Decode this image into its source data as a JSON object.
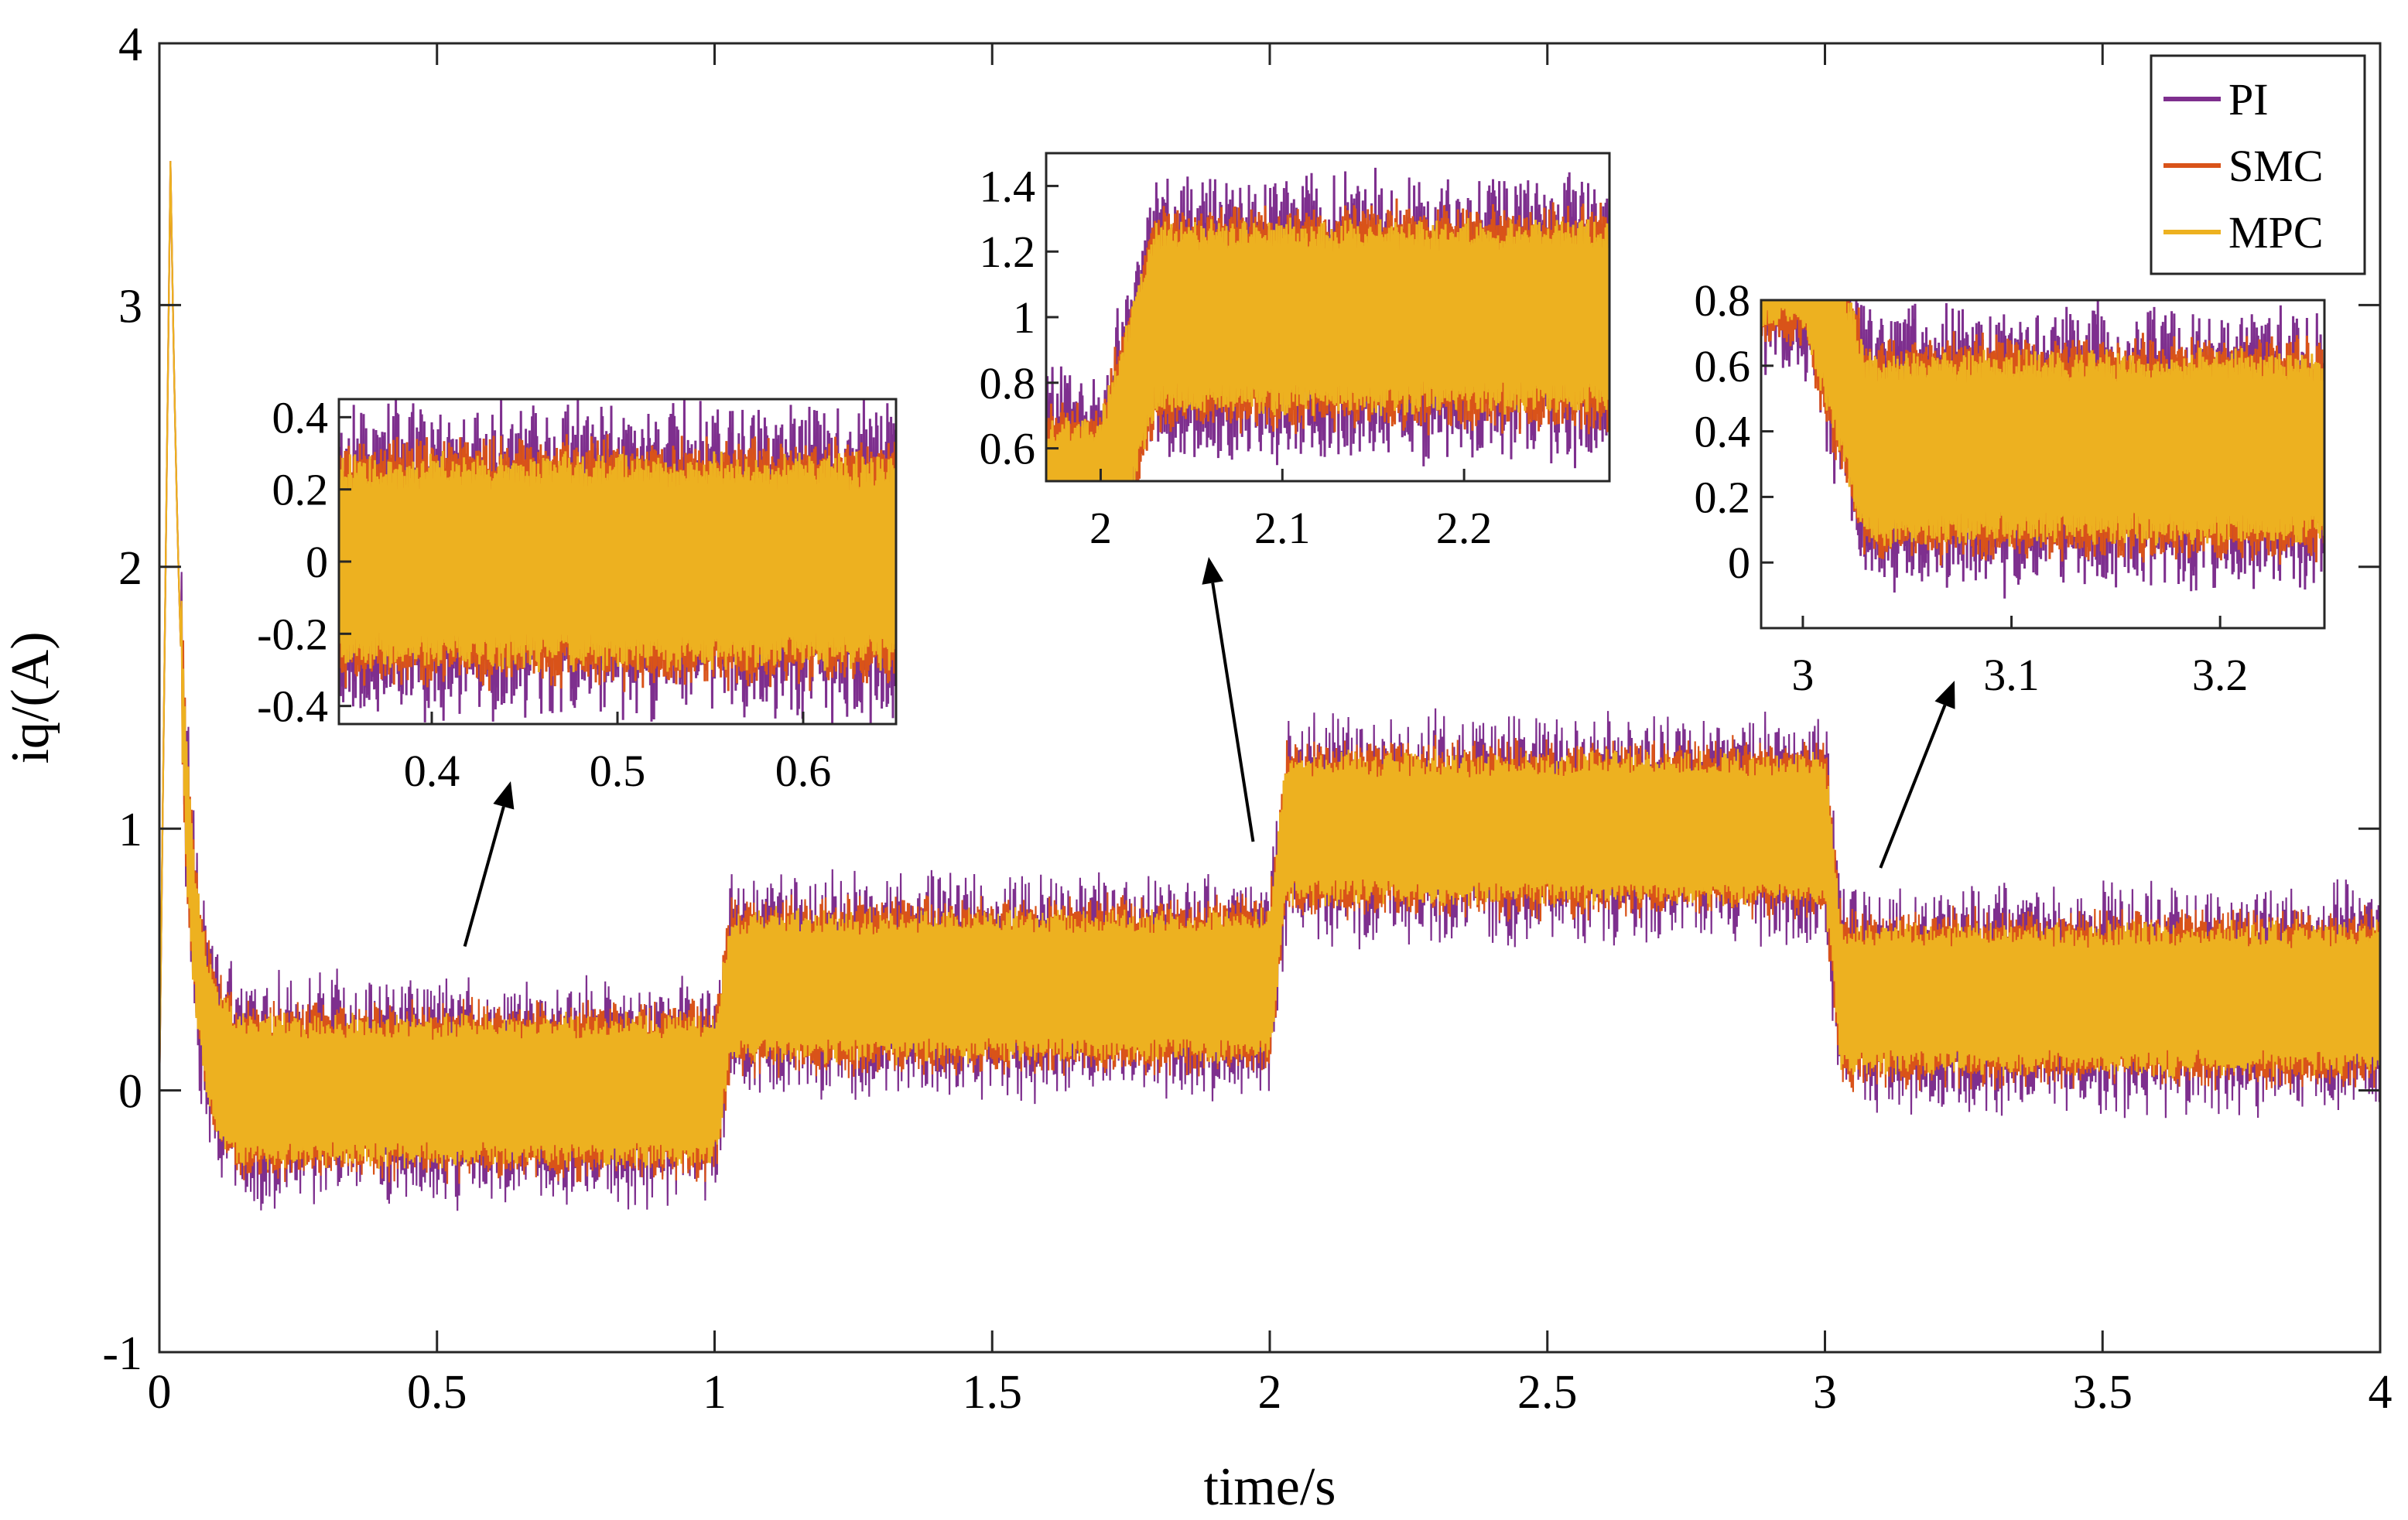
{
  "chart_data": {
    "type": "line",
    "title": "",
    "xlabel": "time/s",
    "ylabel": "iq/(A)",
    "xlim": [
      0,
      4
    ],
    "ylim": [
      -1,
      4
    ],
    "xticks": [
      0,
      0.5,
      1,
      1.5,
      2,
      2.5,
      3,
      3.5,
      4
    ],
    "xtick_labels": [
      "0",
      "0.5",
      "1",
      "1.5",
      "2",
      "2.5",
      "3",
      "3.5",
      "4"
    ],
    "yticks": [
      -1,
      0,
      1,
      2,
      3,
      4
    ],
    "ytick_labels": [
      "-1",
      "0",
      "1",
      "2",
      "3",
      "4"
    ],
    "grid": false,
    "legend_position": "top-right",
    "reference_steps": [
      {
        "t_start": 0,
        "t_end": 1,
        "iq": 0
      },
      {
        "t_start": 1,
        "t_end": 2,
        "iq": 0.4
      },
      {
        "t_start": 2,
        "t_end": 3,
        "iq": 1.0
      },
      {
        "t_start": 3,
        "t_end": 4,
        "iq": 0.35
      }
    ],
    "startup_peak": {
      "t": 0.02,
      "iq": 3.55
    },
    "series": [
      {
        "name": "PI",
        "color": "#7E2F8E",
        "ripple_amplitude": 0.3,
        "noise": 0.12
      },
      {
        "name": "SMC",
        "color": "#D95319",
        "ripple_amplitude": 0.28,
        "noise": 0.04
      },
      {
        "name": "MPC",
        "color": "#EDB120",
        "ripple_amplitude": 0.25,
        "noise": 0.02
      }
    ],
    "insets": [
      {
        "xlim": [
          0.35,
          0.65
        ],
        "ylim": [
          -0.45,
          0.45
        ],
        "xticks": [
          0.4,
          0.5,
          0.6
        ],
        "xtick_labels": [
          "0.4",
          "0.5",
          "0.6"
        ],
        "yticks": [
          0.4,
          0.2,
          0,
          -0.2,
          -0.4
        ],
        "ytick_labels": [
          "0.4",
          "0.2",
          "0",
          "-0.2",
          "-0.4"
        ],
        "zoom_point": {
          "t": 0.55,
          "iq": 0.55
        }
      },
      {
        "xlim": [
          1.97,
          2.28
        ],
        "ylim": [
          0.5,
          1.5
        ],
        "xticks": [
          2,
          2.1,
          2.2
        ],
        "xtick_labels": [
          "2",
          "2.1",
          "2.2"
        ],
        "yticks": [
          1.4,
          1.2,
          1,
          0.8,
          0.6
        ],
        "ytick_labels": [
          "1.4",
          "1.2",
          "1",
          "0.8",
          "0.6"
        ],
        "zoom_point": {
          "t": 1.97,
          "iq": 0.95
        }
      },
      {
        "xlim": [
          2.98,
          3.25
        ],
        "ylim": [
          -0.2,
          0.8
        ],
        "xticks": [
          3,
          3.1,
          3.2
        ],
        "xtick_labels": [
          "3",
          "3.1",
          "3.2"
        ],
        "yticks": [
          0.8,
          0.6,
          0.4,
          0.2,
          0
        ],
        "ytick_labels": [
          "0.8",
          "0.6",
          "0.4",
          "0.2",
          "0"
        ],
        "zoom_point": {
          "t": 3.1,
          "iq": 0.85
        }
      }
    ]
  },
  "legend": {
    "entries": [
      {
        "label": "PI",
        "color": "#7E2F8E"
      },
      {
        "label": "SMC",
        "color": "#D95319"
      },
      {
        "label": "MPC",
        "color": "#EDB120"
      }
    ]
  }
}
